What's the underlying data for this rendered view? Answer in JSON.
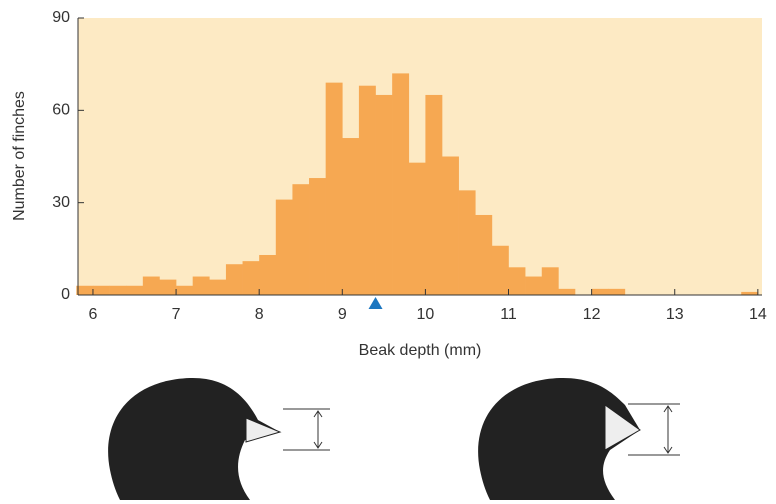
{
  "chart_data": {
    "type": "histogram",
    "xlabel": "Beak depth (mm)",
    "ylabel": "Number of finches",
    "bins": [
      5.8,
      6,
      6.2,
      6.4,
      6.6,
      6.8,
      7,
      7.2,
      7.4,
      7.6,
      7.8,
      8,
      8.2,
      8.4,
      8.6,
      8.8,
      9,
      9.2,
      9.4,
      9.6,
      9.8,
      10,
      10.2,
      10.4,
      10.6,
      10.8,
      11,
      11.2,
      11.4,
      11.6,
      11.8,
      12,
      12.2,
      12.4,
      12.6,
      12.8,
      13,
      13.2,
      13.4,
      13.6,
      13.8,
      14
    ],
    "values": [
      3,
      3,
      3,
      3,
      6,
      5,
      3,
      6,
      5,
      10,
      11,
      13,
      31,
      36,
      38,
      69,
      51,
      68,
      65,
      72,
      43,
      65,
      45,
      34,
      26,
      16,
      9,
      6,
      9,
      2,
      0,
      2,
      2,
      0,
      0,
      0,
      0,
      0,
      0,
      0,
      1
    ],
    "color": "#f6a852",
    "background": "#fdeac4",
    "mean_marker": 9.4,
    "marker_color": "#1b76c0",
    "xlim": [
      5.82,
      14.05
    ],
    "ylim": [
      0,
      90
    ],
    "xticks": [
      6,
      7,
      8,
      9,
      10,
      11,
      12,
      13,
      14
    ],
    "yticks": [
      0,
      30,
      60,
      90
    ]
  }
}
